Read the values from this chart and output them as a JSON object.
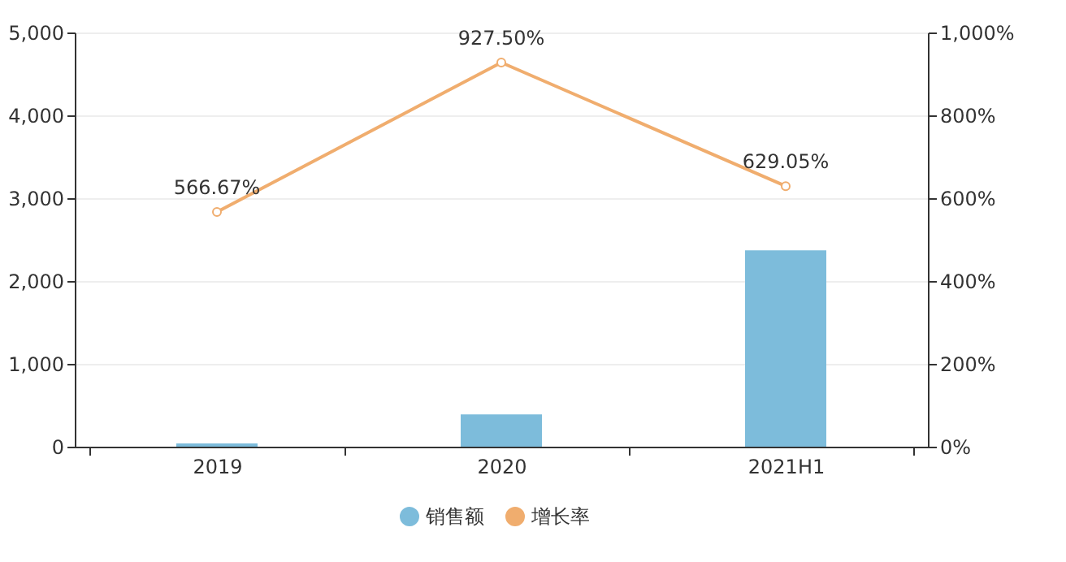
{
  "chart_data": {
    "type": "bar",
    "categories": [
      "2019",
      "2020",
      "2021H1"
    ],
    "series": [
      {
        "name": "销售额",
        "color": "#7dbcdb",
        "values": [
          40,
          390,
          2370
        ]
      },
      {
        "name": "增长率",
        "type": "line",
        "axis": "y2",
        "color": "#f0ad6e",
        "marker": "circle",
        "values": [
          566.67,
          927.5,
          629.05
        ],
        "value_labels": [
          "566.67%",
          "927.50%",
          "629.05%"
        ]
      }
    ],
    "ylim": [
      0,
      5000
    ],
    "yticks": [
      0,
      {
        "value": 1000,
        "label": "1,000"
      },
      {
        "value": 2000,
        "label": "2,000"
      },
      {
        "value": 3000,
        "label": "3,000"
      },
      {
        "value": 4000,
        "label": "4,000"
      },
      {
        "value": 5000,
        "label": "5,000"
      }
    ],
    "y2lim": [
      0,
      1000
    ],
    "y2ticks": [
      {
        "value": 0,
        "label": "0%"
      },
      {
        "value": 200,
        "label": "200%"
      },
      {
        "value": 400,
        "label": "400%"
      },
      {
        "value": 600,
        "label": "600%"
      },
      {
        "value": 800,
        "label": "800%"
      },
      {
        "value": 1000,
        "label": "1,000%"
      }
    ],
    "grid": "y",
    "legend": "bottom"
  }
}
